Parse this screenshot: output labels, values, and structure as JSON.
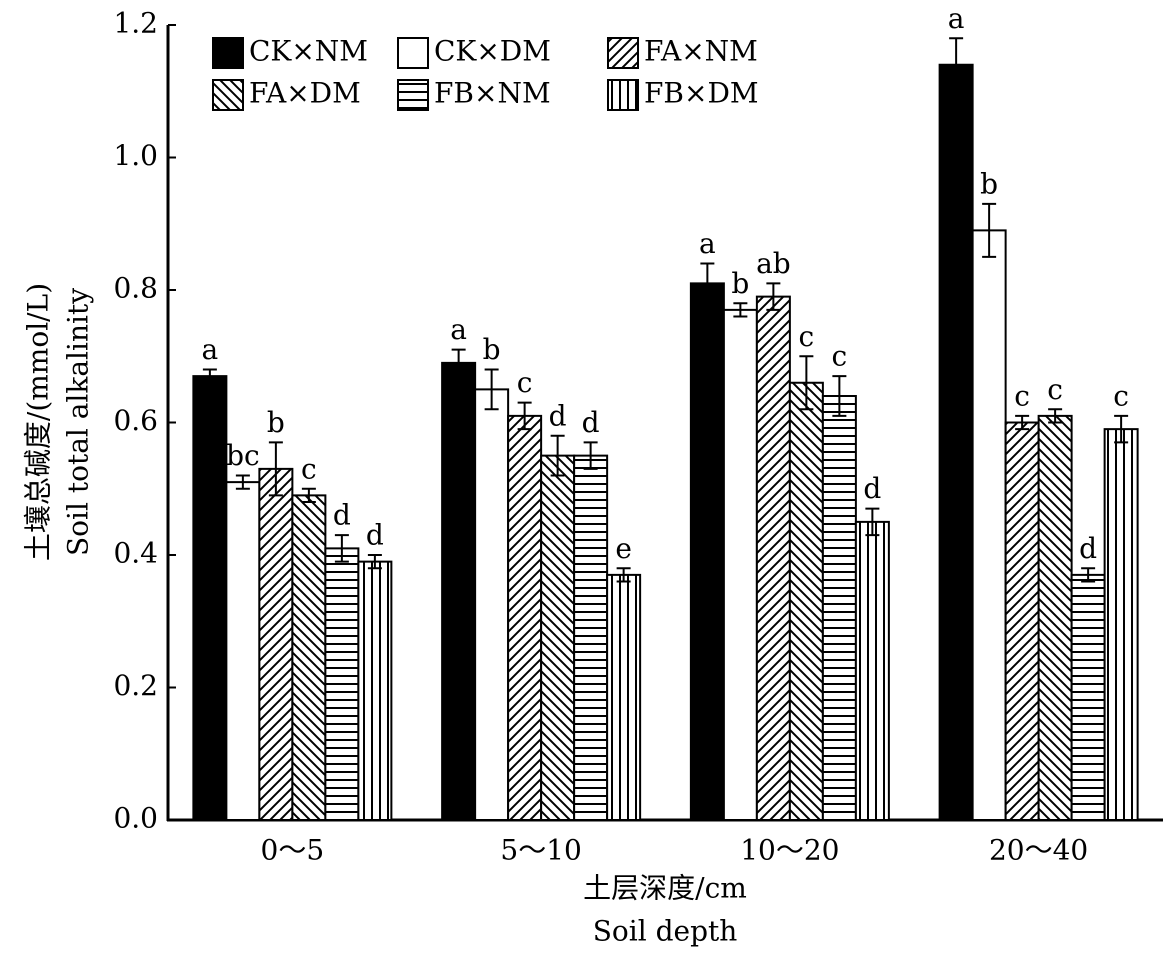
{
  "chart_data": {
    "type": "bar",
    "ylabel": [
      "土壤总碱度/(mmol/L)",
      "Soil total alkalinity"
    ],
    "xlabel": [
      "土层深度/cm",
      "Soil depth"
    ],
    "categories": [
      "0～5",
      "5～10",
      "10～20",
      "20～40"
    ],
    "ylim": [
      0,
      1.2
    ],
    "yticks": [
      {
        "value": 0,
        "label": "0.0"
      },
      0.2,
      0.4,
      0.6,
      0.8,
      {
        "value": 1,
        "label": "1.0"
      },
      1.2
    ],
    "legend": "upper left",
    "series": [
      {
        "name": "CK×NM",
        "color": "#000000",
        "pattern": "solid",
        "values": [
          0.67,
          0.69,
          0.81,
          1.14
        ],
        "errors": [
          0.01,
          0.02,
          0.03,
          0.04
        ],
        "letters": [
          "a",
          "a",
          "a",
          "a"
        ]
      },
      {
        "name": "CK×DM",
        "color": "#000000",
        "pattern": "none",
        "values": [
          0.51,
          0.65,
          0.77,
          0.89
        ],
        "errors": [
          0.01,
          0.03,
          0.01,
          0.04
        ],
        "letters": [
          "bc",
          "b",
          "b",
          "b"
        ]
      },
      {
        "name": "FA×NM",
        "color": "#000000",
        "pattern": "diagonal",
        "values": [
          0.53,
          0.61,
          0.79,
          0.6
        ],
        "errors": [
          0.04,
          0.02,
          0.02,
          0.01
        ],
        "letters": [
          "b",
          "c",
          "ab",
          "c"
        ]
      },
      {
        "name": "FA×DM",
        "color": "#000000",
        "pattern": "back-diagonal",
        "values": [
          0.49,
          0.55,
          0.66,
          0.61
        ],
        "errors": [
          0.01,
          0.03,
          0.04,
          0.01
        ],
        "letters": [
          "c",
          "d",
          "c",
          "c"
        ]
      },
      {
        "name": "FB×NM",
        "color": "#000000",
        "pattern": "horizontal",
        "values": [
          0.41,
          0.55,
          0.64,
          0.37
        ],
        "errors": [
          0.02,
          0.02,
          0.03,
          0.01
        ],
        "letters": [
          "d",
          "d",
          "c",
          "d"
        ]
      },
      {
        "name": "FB×DM",
        "color": "#000000",
        "pattern": "vertical",
        "values": [
          0.39,
          0.37,
          0.45,
          0.59
        ],
        "errors": [
          0.01,
          0.01,
          0.02,
          0.02
        ],
        "letters": [
          "d",
          "e",
          "d",
          "c"
        ]
      }
    ]
  }
}
